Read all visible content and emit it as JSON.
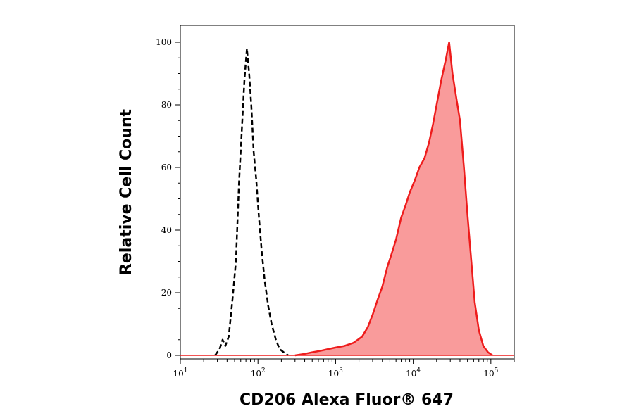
{
  "chart_data": {
    "type": "area",
    "title": "",
    "xlabel": "CD206 Alexa Fluor® 647",
    "ylabel": "Relative Cell Count",
    "x_scale": "log",
    "xlim": [
      10,
      200000
    ],
    "ylim": [
      0,
      100
    ],
    "y_ticks": [
      0,
      20,
      40,
      60,
      80,
      100
    ],
    "x_ticks": [
      {
        "value": 10,
        "base": "10",
        "exp": "1"
      },
      {
        "value": 100,
        "base": "10",
        "exp": "2"
      },
      {
        "value": 1000,
        "base": "10",
        "exp": "3"
      },
      {
        "value": 10000,
        "base": "10",
        "exp": "4"
      },
      {
        "value": 100000,
        "base": "10",
        "exp": "5"
      }
    ],
    "grid": false,
    "series": [
      {
        "style": "dashed-black-outline",
        "color": "#000000",
        "x": [
          28,
          32,
          35,
          38,
          42,
          47,
          52,
          57,
          62,
          67,
          72,
          77,
          82,
          88,
          95,
          103,
          112,
          122,
          135,
          150,
          170,
          190,
          215,
          245
        ],
        "y": [
          0,
          2,
          5,
          3,
          6,
          18,
          30,
          55,
          72,
          88,
          98,
          90,
          80,
          65,
          56,
          44,
          33,
          24,
          16,
          10,
          5,
          2,
          1,
          0
        ]
      },
      {
        "style": "filled-red",
        "color": "#ee1c1c",
        "fill": "#f99b9b",
        "x": [
          300,
          400,
          500,
          650,
          800,
          1000,
          1300,
          1700,
          2200,
          2600,
          3000,
          3500,
          4000,
          4600,
          5200,
          6000,
          7000,
          8000,
          9000,
          10500,
          12000,
          14000,
          16000,
          18000,
          20000,
          23000,
          26000,
          29000,
          32000,
          36000,
          40000,
          45000,
          50000,
          56000,
          62000,
          70000,
          80000,
          92000,
          105000
        ],
        "y": [
          0,
          0.5,
          1,
          1.5,
          2,
          2.5,
          3,
          4,
          6,
          9,
          13,
          18,
          22,
          28,
          32,
          37,
          44,
          48,
          52,
          56,
          60,
          63,
          68,
          74,
          80,
          88,
          94,
          100,
          90,
          82,
          75,
          60,
          45,
          30,
          17,
          8,
          3,
          1,
          0
        ]
      }
    ]
  }
}
